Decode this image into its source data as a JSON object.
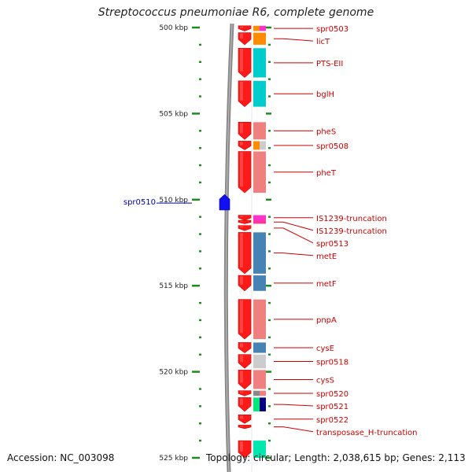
{
  "title": "Streptococcus pneumoniae R6, complete genome",
  "accession": "Accession: NC_003098",
  "topology": "Topology: circular; Length: 2,038,615 bp; Genes: 2,113",
  "scale": {
    "major_ticks": [
      "500 kbp",
      "505 kbp",
      "510 kbp",
      "515 kbp",
      "520 kbp",
      "525 kbp"
    ],
    "start_kbp": 499.9,
    "end_kbp": 525.0
  },
  "colors": {
    "forward_arrow": "#ff1a1a",
    "reverse_arrow": "#1010f0",
    "backbone": "#888888",
    "tick": "#1f8a1f",
    "forward_label": "#cc0000",
    "reverse_label": "#0000bb"
  },
  "genes": [
    {
      "name": "spr0503",
      "strand": "+",
      "start_kbp": 499.9,
      "end_kbp": 500.2,
      "func_colors": [
        "#ff8c00",
        "#ff33cc"
      ]
    },
    {
      "name": "licT",
      "strand": "+",
      "start_kbp": 500.3,
      "end_kbp": 501.0,
      "func_colors": [
        "#ff8c00"
      ]
    },
    {
      "name": "PTS-EII",
      "strand": "+",
      "start_kbp": 501.2,
      "end_kbp": 502.9,
      "func_colors": [
        "#00cccc"
      ]
    },
    {
      "name": "bglH",
      "strand": "+",
      "start_kbp": 503.1,
      "end_kbp": 504.6,
      "func_colors": [
        "#00cccc"
      ]
    },
    {
      "name": "pheS",
      "strand": "+",
      "start_kbp": 505.5,
      "end_kbp": 506.5,
      "func_colors": [
        "#f08080"
      ]
    },
    {
      "name": "spr0508",
      "strand": "+",
      "start_kbp": 506.6,
      "end_kbp": 507.1,
      "func_colors": [
        "#ff8c00",
        "#cccccc"
      ]
    },
    {
      "name": "pheT",
      "strand": "+",
      "start_kbp": 507.2,
      "end_kbp": 509.6,
      "func_colors": [
        "#f08080"
      ]
    },
    {
      "name": "spr0510",
      "strand": "-",
      "start_kbp": 509.7,
      "end_kbp": 510.6,
      "func_colors": []
    },
    {
      "name": "IS1239-truncation",
      "strand": "+",
      "start_kbp": 510.9,
      "end_kbp": 511.2,
      "func_colors": [
        "#ff33cc"
      ]
    },
    {
      "name": "IS1239-truncation",
      "strand": "+",
      "start_kbp": 511.2,
      "end_kbp": 511.4,
      "func_colors": [
        "#ff3399"
      ]
    },
    {
      "name": "spr0513",
      "strand": "+",
      "start_kbp": 511.5,
      "end_kbp": 511.8,
      "func_colors": []
    },
    {
      "name": "metE",
      "strand": "+",
      "start_kbp": 511.9,
      "end_kbp": 514.3,
      "func_colors": [
        "#4682b4"
      ]
    },
    {
      "name": "metF",
      "strand": "+",
      "start_kbp": 514.4,
      "end_kbp": 515.3,
      "func_colors": [
        "#4682b4"
      ]
    },
    {
      "name": "pnpA",
      "strand": "+",
      "start_kbp": 515.8,
      "end_kbp": 518.1,
      "func_colors": [
        "#f08080"
      ]
    },
    {
      "name": "cysE",
      "strand": "+",
      "start_kbp": 518.3,
      "end_kbp": 518.9,
      "func_colors": [
        "#4682b4"
      ]
    },
    {
      "name": "spr0518",
      "strand": "+",
      "start_kbp": 519.0,
      "end_kbp": 519.8,
      "func_colors": [
        "#cccccc"
      ]
    },
    {
      "name": "cysS",
      "strand": "+",
      "start_kbp": 519.9,
      "end_kbp": 521.0,
      "func_colors": [
        "#f08080"
      ]
    },
    {
      "name": "spr0520",
      "strand": "+",
      "start_kbp": 521.1,
      "end_kbp": 521.4,
      "func_colors": [
        "#888888",
        "#f08080"
      ]
    },
    {
      "name": "spr0521",
      "strand": "+",
      "start_kbp": 521.5,
      "end_kbp": 522.3,
      "func_colors": [
        "#00e87a",
        "#000080"
      ]
    },
    {
      "name": "spr0522",
      "strand": "+",
      "start_kbp": 522.5,
      "end_kbp": 523.0,
      "func_colors": []
    },
    {
      "name": "transposase_H-truncation",
      "strand": "+",
      "start_kbp": 523.1,
      "end_kbp": 523.3,
      "func_colors": []
    },
    {
      "name": "",
      "strand": "+",
      "start_kbp": 524.0,
      "end_kbp": 525.0,
      "func_colors": [
        "#00e8b0"
      ]
    }
  ]
}
